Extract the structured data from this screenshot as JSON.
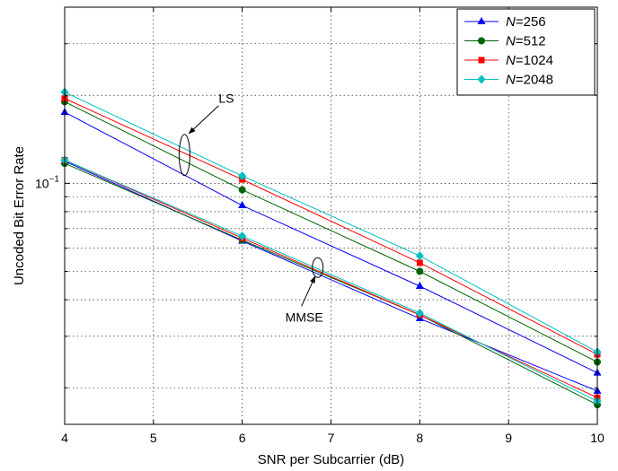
{
  "chart_data": {
    "type": "line",
    "title": "",
    "xlabel": "SNR per Subcarrier (dB)",
    "ylabel": "Uncoded Bit Error Rate",
    "xlim": [
      4,
      10
    ],
    "ylim": [
      0.015,
      0.4
    ],
    "yscale": "log",
    "grid": true,
    "x_ticks": [
      "4",
      "5",
      "6",
      "7",
      "8",
      "9",
      "10"
    ],
    "y_tick_labels": [
      {
        "base": "10",
        "exp": "−1"
      }
    ],
    "legend_position": "top-right",
    "x": [
      4,
      6,
      8,
      10
    ],
    "series": [
      {
        "name": "N=256",
        "name_prefix": "N",
        "name_suffix": "=256",
        "color": "#0000ff",
        "marker": "triangle",
        "group": "LS",
        "values": [
          0.175,
          0.084,
          0.0445,
          0.0225
        ]
      },
      {
        "name": "N=512",
        "name_prefix": "N",
        "name_suffix": "=512",
        "color": "#006400",
        "marker": "circle",
        "group": "LS",
        "values": [
          0.19,
          0.095,
          0.05,
          0.0245
        ]
      },
      {
        "name": "N=1024",
        "name_prefix": "N",
        "name_suffix": "=1024",
        "color": "#ff0000",
        "marker": "square",
        "group": "LS",
        "values": [
          0.195,
          0.103,
          0.0535,
          0.026
        ]
      },
      {
        "name": "N=2048",
        "name_prefix": "N",
        "name_suffix": "=2048",
        "color": "#00bfbf",
        "marker": "diamond",
        "group": "LS",
        "values": [
          0.205,
          0.106,
          0.0565,
          0.0265
        ]
      },
      {
        "name": "N=256",
        "color": "#0000ff",
        "marker": "triangle",
        "group": "MMSE",
        "values": [
          0.119,
          0.0635,
          0.0345,
          0.0195
        ]
      },
      {
        "name": "N=512",
        "color": "#006400",
        "marker": "circle",
        "group": "MMSE",
        "values": [
          0.117,
          0.064,
          0.0355,
          0.0175
        ]
      },
      {
        "name": "N=1024",
        "color": "#ff0000",
        "marker": "square",
        "group": "MMSE",
        "values": [
          0.12,
          0.065,
          0.0355,
          0.0185
        ]
      },
      {
        "name": "N=2048",
        "color": "#00bfbf",
        "marker": "diamond",
        "group": "MMSE",
        "values": [
          0.12,
          0.066,
          0.036,
          0.018
        ]
      }
    ],
    "annotations": [
      {
        "text": "LS",
        "target_x": 5.35,
        "target_y": 0.125
      },
      {
        "text": "MMSE",
        "target_x": 6.85,
        "target_y": 0.0515
      }
    ]
  }
}
